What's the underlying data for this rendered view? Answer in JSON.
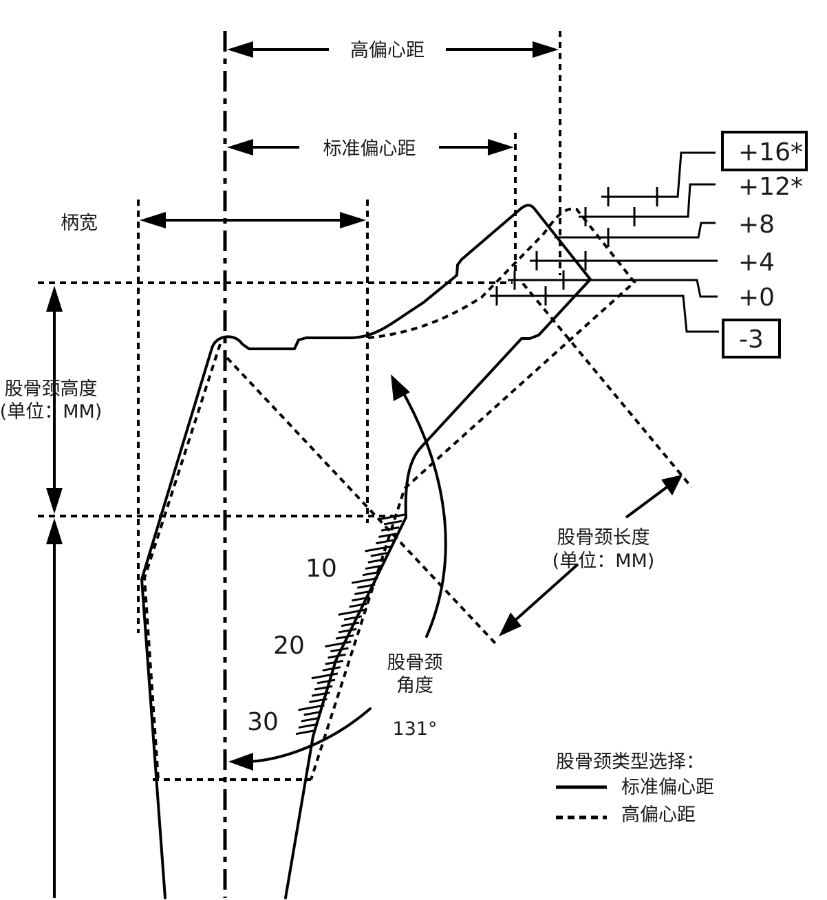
{
  "labels": {
    "high_offset": "高偏心距",
    "standard_offset": "标准偏心距",
    "stem_width": "柄宽",
    "neck_height_l1": "股骨颈高度",
    "neck_height_l2": "(单位：MM)",
    "neck_length_l1": "股骨颈长度",
    "neck_length_l2": "(单位：MM)",
    "neck_angle_l1": "股骨颈",
    "neck_angle_l2": "角度",
    "neck_angle_value": "131°"
  },
  "neck_sizes": [
    "+16*",
    "+12*",
    "+8",
    "+4",
    "+0",
    "-3"
  ],
  "boxed_sizes": [
    "+16*",
    "-3"
  ],
  "scale_marks": [
    "10",
    "20",
    "30"
  ],
  "legend": {
    "title": "股骨颈类型选择：",
    "items": [
      {
        "label": "标准偏心距",
        "style": "solid"
      },
      {
        "label": "高偏心距",
        "style": "dashed"
      }
    ]
  }
}
